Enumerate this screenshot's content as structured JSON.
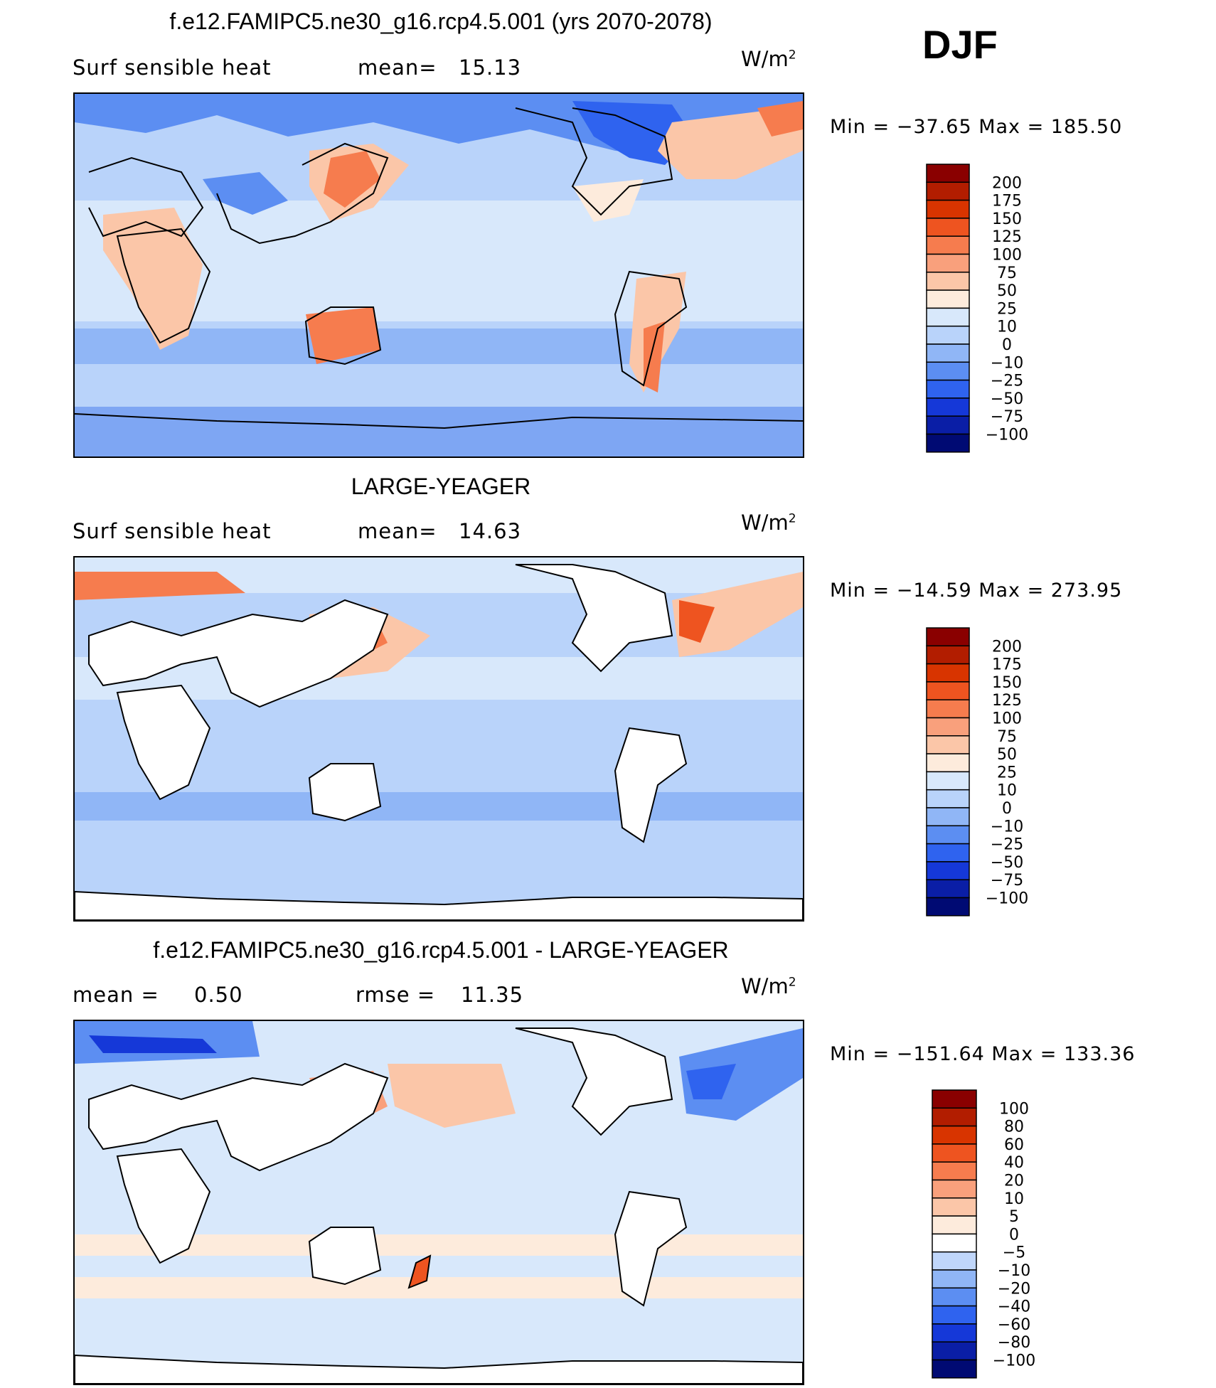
{
  "season": "DJF",
  "colorbar_main": {
    "labels": [
      "200",
      "175",
      "150",
      "125",
      "100",
      "75",
      "50",
      "25",
      "10",
      "0",
      "−10",
      "−25",
      "−50",
      "−75",
      "−100"
    ],
    "colors": [
      "#8a0000",
      "#b21d00",
      "#d83400",
      "#ee5420",
      "#f67c4e",
      "#f9a07c",
      "#fbc6a8",
      "#fdebdc",
      "#d8e8fb",
      "#b9d3fa",
      "#90b6f6",
      "#5c8ef2",
      "#2f63ef",
      "#1538d8",
      "#0a1ea6",
      "#000a73"
    ]
  },
  "colorbar_diff": {
    "labels": [
      "100",
      "80",
      "60",
      "40",
      "20",
      "10",
      "5",
      "0",
      "−5",
      "−10",
      "−20",
      "−40",
      "−60",
      "−80",
      "−100"
    ],
    "colors": [
      "#8a0000",
      "#b21d00",
      "#d83400",
      "#ee5420",
      "#f67c4e",
      "#f9a07c",
      "#fbc6a8",
      "#fdebdc",
      "#ffffff",
      "#c0d6fa",
      "#90b6f6",
      "#5c8ef2",
      "#2f63ef",
      "#1538d8",
      "#0a1ea6",
      "#000a73"
    ]
  },
  "panels": [
    {
      "title": "f.e12.FAMIPC5.ne30_g16.rcp4.5.001 (yrs 2070-2078)",
      "left_label": "Surf  sensible  heat",
      "stat_label": "mean=",
      "stat_value": "15.13",
      "units": "W/m",
      "units_exp": "2",
      "min_max": "Min  =  −37.65  Max  =  185.50"
    },
    {
      "title": "LARGE-YEAGER",
      "left_label": "Surf  sensible  heat",
      "stat_label": "mean=",
      "stat_value": "14.63",
      "units": "W/m",
      "units_exp": "2",
      "min_max": "Min  =  −14.59  Max  =  273.95"
    },
    {
      "title": "f.e12.FAMIPC5.ne30_g16.rcp4.5.001 - LARGE-YEAGER",
      "left_label": "mean  =",
      "left_value": "0.50",
      "stat_label": "rmse  =",
      "stat_value": "11.35",
      "units": "W/m",
      "units_exp": "2",
      "min_max": "Min  =  −151.64  Max  =  133.36"
    }
  ],
  "chart_data": {
    "type": "heatmap",
    "variable": "Surf sensible heat",
    "units": "W/m2",
    "season": "DJF",
    "panels": [
      {
        "name": "f.e12.FAMIPC5.ne30_g16.rcp4.5.001 (yrs 2070-2078)",
        "mean": 15.13,
        "min": -37.65,
        "max": 185.5,
        "contour_levels": [
          -100,
          -75,
          -50,
          -25,
          -10,
          0,
          10,
          25,
          50,
          75,
          100,
          125,
          150,
          175,
          200
        ]
      },
      {
        "name": "LARGE-YEAGER",
        "mean": 14.63,
        "min": -14.59,
        "max": 273.95,
        "contour_levels": [
          -100,
          -75,
          -50,
          -25,
          -10,
          0,
          10,
          25,
          50,
          75,
          100,
          125,
          150,
          175,
          200
        ]
      },
      {
        "name": "f.e12.FAMIPC5.ne30_g16.rcp4.5.001 - LARGE-YEAGER",
        "mean": 0.5,
        "rmse": 11.35,
        "min": -151.64,
        "max": 133.36,
        "contour_levels": [
          -100,
          -80,
          -60,
          -40,
          -20,
          -10,
          -5,
          0,
          5,
          10,
          20,
          40,
          60,
          80,
          100
        ]
      }
    ]
  }
}
